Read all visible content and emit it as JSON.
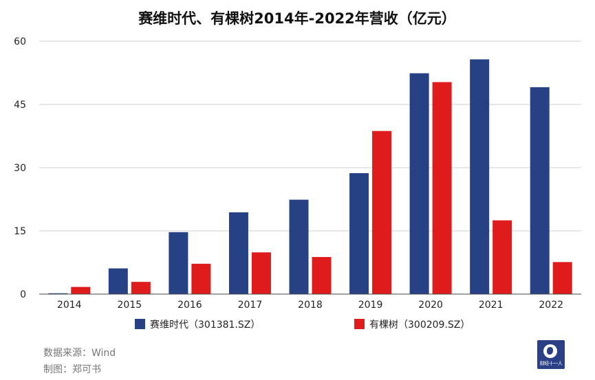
{
  "chart_data": {
    "type": "bar",
    "title": "赛维时代、有棵树2014年-2022年营收（亿元）",
    "categories": [
      "2014",
      "2015",
      "2016",
      "2017",
      "2018",
      "2019",
      "2020",
      "2021",
      "2022"
    ],
    "series": [
      {
        "name": "赛维时代（301381.SZ）",
        "color": "#264285",
        "values": [
          0.2,
          6.1,
          14.7,
          19.4,
          22.4,
          28.7,
          52.4,
          55.7,
          49.1
        ]
      },
      {
        "name": "有棵树（300209.SZ）",
        "color": "#e01b1b",
        "values": [
          1.7,
          2.9,
          7.2,
          9.9,
          8.8,
          38.7,
          50.3,
          17.5,
          7.6
        ]
      }
    ],
    "yticks": [
      0,
      15,
      30,
      45,
      60
    ],
    "ylim": [
      0,
      60
    ],
    "grid": true,
    "legend": "bottom"
  },
  "footer": {
    "source": "数据来源：Wind",
    "author": "制图：郑可书"
  },
  "logo": {
    "text": "财经十一人"
  }
}
